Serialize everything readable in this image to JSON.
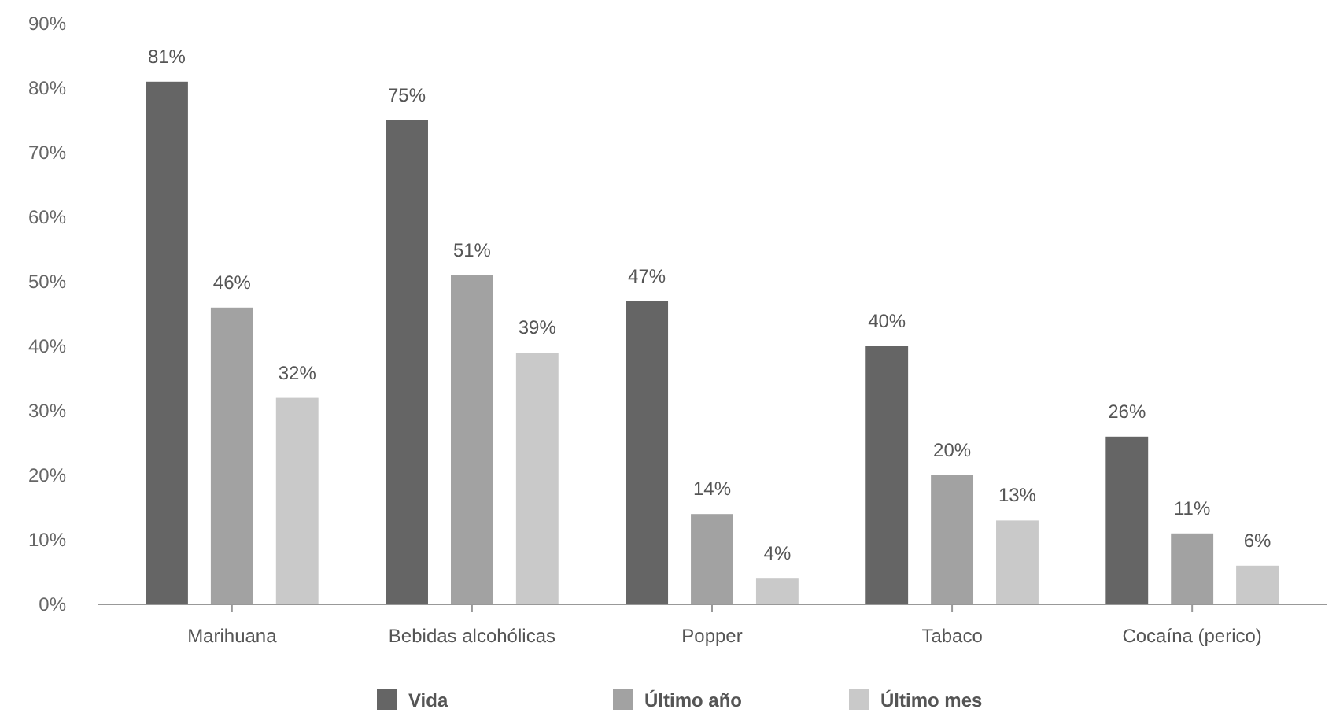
{
  "chart_data": {
    "type": "bar",
    "categories": [
      "Marihuana",
      "Bebidas alcohólicas",
      "Popper",
      "Tabaco",
      "Cocaína (perico)"
    ],
    "series": [
      {
        "name": "Vida",
        "color": "#656565",
        "values": [
          81,
          75,
          47,
          40,
          26
        ],
        "value_labels": [
          "81%",
          "75%",
          "47%",
          "40%",
          "26%"
        ]
      },
      {
        "name": "Último año",
        "color": "#a2a2a2",
        "values": [
          46,
          51,
          14,
          20,
          11
        ],
        "value_labels": [
          "46%",
          "51%",
          "14%",
          "20%",
          "11%"
        ]
      },
      {
        "name": "Último mes",
        "color": "#c9c9c9",
        "values": [
          32,
          39,
          4,
          13,
          6
        ],
        "value_labels": [
          "32%",
          "39%",
          "4%",
          "13%",
          "6%"
        ]
      }
    ],
    "ylim": [
      0,
      90
    ],
    "yticks": [
      {
        "value": 0,
        "label": "0%"
      },
      {
        "value": 10,
        "label": "10%"
      },
      {
        "value": 20,
        "label": "20%"
      },
      {
        "value": 30,
        "label": "30%"
      },
      {
        "value": 40,
        "label": "40%"
      },
      {
        "value": 50,
        "label": "50%"
      },
      {
        "value": 60,
        "label": "60%"
      },
      {
        "value": 70,
        "label": "70%"
      },
      {
        "value": 80,
        "label": "80%"
      },
      {
        "value": 90,
        "label": "90%"
      }
    ],
    "legend": "bottom"
  }
}
